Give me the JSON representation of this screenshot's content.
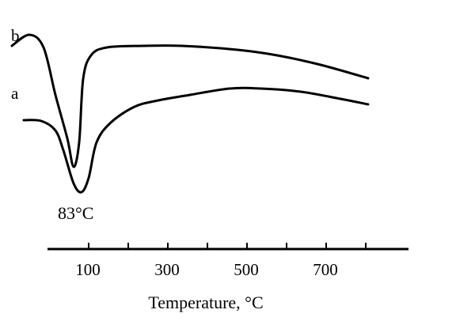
{
  "chart_data": {
    "type": "line",
    "title": "",
    "xlabel": "Temperature, °C",
    "ylabel": "",
    "xlim": [
      -100,
      910
    ],
    "x_ticks": [
      100,
      200,
      300,
      400,
      500,
      600,
      700,
      800
    ],
    "x_tick_labels": [
      "100",
      "300",
      "500",
      "700"
    ],
    "grid": false,
    "line_color": "#000000",
    "annotations": [
      {
        "text": "83°C",
        "x": 83
      }
    ],
    "series": [
      {
        "name": "b",
        "x": [
          -94,
          -50,
          -14,
          16,
          46,
          62,
          76,
          86,
          106,
          146,
          236,
          336,
          476,
          576,
          686,
          806
        ],
        "y": [
          257,
          271,
          255,
          195,
          140,
          104,
          135,
          215,
          245,
          255,
          257,
          257,
          252,
          245,
          233,
          216
        ]
      },
      {
        "name": "a",
        "x": [
          -64,
          -20,
          16,
          36,
          62,
          82,
          100,
          120,
          156,
          216,
          276,
          356,
          456,
          536,
          636,
          736,
          806
        ],
        "y": [
          163,
          162,
          150,
          125,
          83,
          72,
          90,
          135,
          160,
          180,
          188,
          195,
          203,
          203,
          199,
          190,
          183
        ]
      }
    ]
  }
}
